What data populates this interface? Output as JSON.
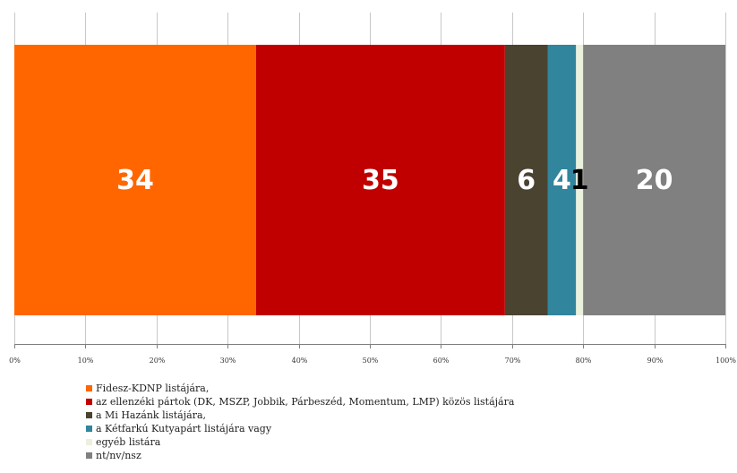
{
  "chart_data": {
    "type": "bar",
    "orientation": "horizontal",
    "stacked": true,
    "title": "",
    "xlabel": "",
    "ylabel": "",
    "xlim": [
      0,
      100
    ],
    "x_ticks": [
      "0%",
      "10%",
      "20%",
      "30%",
      "40%",
      "50%",
      "60%",
      "70%",
      "80%",
      "90%",
      "100%"
    ],
    "grid": true,
    "legend_position": "bottom-left",
    "series": [
      {
        "name": "Fidesz-KDNP listájára,",
        "value": 34,
        "label": "34",
        "color": "#ff6600"
      },
      {
        "name": "az ellenzéki pártok (DK, MSZP, Jobbik, Párbeszéd, Momentum, LMP) közös listájára",
        "value": 35,
        "label": "35",
        "color": "#c00000"
      },
      {
        "name": "a Mi Hazánk listájára,",
        "value": 6,
        "label": "6",
        "color": "#4a4330"
      },
      {
        "name": "a Kétfarkú Kutyapárt listájára vagy",
        "value": 4,
        "label": "4",
        "color": "#31859c"
      },
      {
        "name": "egyéb listára",
        "value": 1,
        "label": "1",
        "color": "#eaf1dd"
      },
      {
        "name": "nt/nv/nsz",
        "value": 20,
        "label": "20",
        "color": "#808080"
      }
    ]
  }
}
